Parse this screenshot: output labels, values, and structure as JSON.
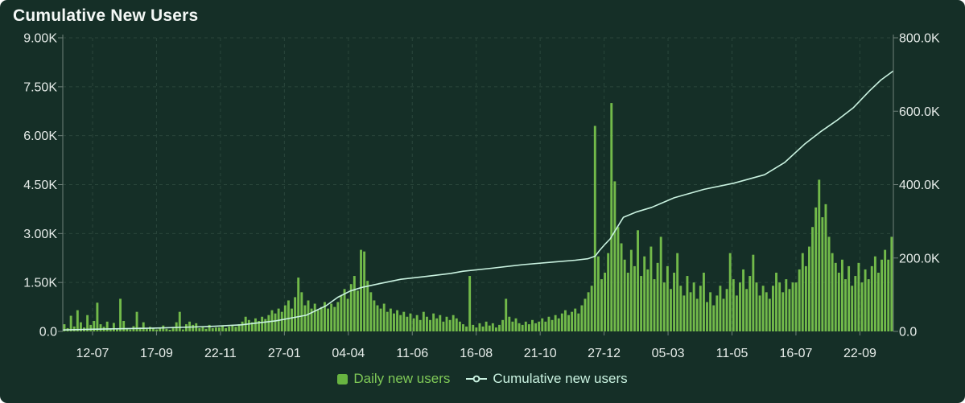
{
  "card": {
    "title": "Cumulative New Users"
  },
  "legend": [
    {
      "label": "Daily new users",
      "color": "#68b441",
      "text_color": "#7fc957"
    },
    {
      "label": "Cumulative new users",
      "color": "#c9f2e0",
      "text_color": "#c9f2e0"
    }
  ],
  "colors": {
    "background": "#152f27",
    "bar": "#72ba4a",
    "line": "#c9f2e0",
    "axis_line": "#6f807a",
    "grid_line": "#2a463b",
    "tick_label": "#e6ece9",
    "title": "#f4f8f6"
  },
  "chart_data": {
    "type": "combo",
    "title": "Cumulative New Users",
    "grid": "dashed",
    "legend_position": "bottom",
    "x_axis": {
      "tick_labels": [
        "12-07",
        "17-09",
        "22-11",
        "27-01",
        "04-04",
        "11-06",
        "16-08",
        "21-10",
        "27-12",
        "05-03",
        "11-05",
        "16-07",
        "22-09"
      ]
    },
    "left_axis": {
      "range": [
        0,
        9
      ],
      "tick_values": [
        0,
        1.5,
        3,
        4.5,
        6,
        7.5,
        9
      ],
      "tick_labels": [
        "0.0",
        "1.50K",
        "3.00K",
        "4.50K",
        "6.00K",
        "7.50K",
        "9.00K"
      ],
      "applies_to": "Daily new users (thousands)"
    },
    "right_axis": {
      "range": [
        0,
        800
      ],
      "tick_values": [
        0,
        200,
        400,
        600,
        800
      ],
      "tick_labels": [
        "0.0",
        "200.0K",
        "400.0K",
        "600.0K",
        "800.0K"
      ],
      "applies_to": "Cumulative new users (thousands)"
    },
    "series": [
      {
        "name": "Daily new users",
        "type": "bar",
        "y_axis": "left",
        "unit": "K",
        "values": [
          0.22,
          0.1,
          0.48,
          0.15,
          0.65,
          0.28,
          0.12,
          0.5,
          0.2,
          0.32,
          0.88,
          0.22,
          0.14,
          0.3,
          0.1,
          0.26,
          0.08,
          1.0,
          0.32,
          0.1,
          0.06,
          0.16,
          0.6,
          0.12,
          0.28,
          0.08,
          0.14,
          0.1,
          0.06,
          0.12,
          0.18,
          0.08,
          0.05,
          0.14,
          0.28,
          0.6,
          0.06,
          0.22,
          0.3,
          0.2,
          0.25,
          0.1,
          0.14,
          0.08,
          0.2,
          0.1,
          0.12,
          0.12,
          0.18,
          0.1,
          0.15,
          0.2,
          0.14,
          0.22,
          0.3,
          0.45,
          0.35,
          0.28,
          0.4,
          0.32,
          0.45,
          0.38,
          0.5,
          0.65,
          0.55,
          0.7,
          0.6,
          0.8,
          0.95,
          0.7,
          1.05,
          1.65,
          1.2,
          0.8,
          0.95,
          0.7,
          0.85,
          0.65,
          0.75,
          0.9,
          0.7,
          0.85,
          0.75,
          0.9,
          1.1,
          1.3,
          1.0,
          1.45,
          1.7,
          1.25,
          2.5,
          2.45,
          1.55,
          1.2,
          0.95,
          0.8,
          0.7,
          0.85,
          0.6,
          0.7,
          0.55,
          0.65,
          0.5,
          0.6,
          0.45,
          0.55,
          0.4,
          0.5,
          0.35,
          0.6,
          0.45,
          0.35,
          0.55,
          0.4,
          0.5,
          0.3,
          0.45,
          0.35,
          0.5,
          0.4,
          0.3,
          0.22,
          0.15,
          1.7,
          0.2,
          0.12,
          0.25,
          0.15,
          0.3,
          0.18,
          0.25,
          0.12,
          0.2,
          0.35,
          1.0,
          0.45,
          0.3,
          0.4,
          0.25,
          0.2,
          0.3,
          0.22,
          0.35,
          0.25,
          0.3,
          0.4,
          0.3,
          0.45,
          0.35,
          0.5,
          0.4,
          0.55,
          0.65,
          0.5,
          0.6,
          0.7,
          0.55,
          0.8,
          1.0,
          1.2,
          1.4,
          6.3,
          2.3,
          1.6,
          1.8,
          2.4,
          7.0,
          4.6,
          3.2,
          2.7,
          2.2,
          1.8,
          2.5,
          2.0,
          3.1,
          1.7,
          2.3,
          1.9,
          2.6,
          1.6,
          2.1,
          2.9,
          1.5,
          2.0,
          1.3,
          1.8,
          2.4,
          1.4,
          1.1,
          1.7,
          1.2,
          1.5,
          1.0,
          1.4,
          1.8,
          0.9,
          1.2,
          0.8,
          1.1,
          1.4,
          1.0,
          1.3,
          2.4,
          1.6,
          1.1,
          1.5,
          1.9,
          1.3,
          1.7,
          2.35,
          1.5,
          1.1,
          1.4,
          1.2,
          1.0,
          1.4,
          1.8,
          1.5,
          1.2,
          1.6,
          1.3,
          1.5,
          1.5,
          1.9,
          2.4,
          2.0,
          2.6,
          3.2,
          3.8,
          4.65,
          3.5,
          3.9,
          2.9,
          2.4,
          2.1,
          1.8,
          2.2,
          1.6,
          2.0,
          1.4,
          1.7,
          2.1,
          1.5,
          1.9,
          1.6,
          2.0,
          2.3,
          1.8,
          2.2,
          2.5,
          2.2,
          2.9
        ]
      },
      {
        "name": "Cumulative new users",
        "type": "line",
        "y_axis": "right",
        "unit": "K",
        "points_xfrac_value": [
          [
            0,
            4
          ],
          [
            0.035,
            6
          ],
          [
            0.109,
            9
          ],
          [
            0.157,
            12
          ],
          [
            0.183,
            14
          ],
          [
            0.215,
            18
          ],
          [
            0.257,
            29
          ],
          [
            0.293,
            44
          ],
          [
            0.317,
            70
          ],
          [
            0.331,
            93
          ],
          [
            0.346,
            110
          ],
          [
            0.36,
            120
          ],
          [
            0.385,
            132
          ],
          [
            0.407,
            142
          ],
          [
            0.438,
            150
          ],
          [
            0.467,
            158
          ],
          [
            0.482,
            164
          ],
          [
            0.516,
            172
          ],
          [
            0.554,
            182
          ],
          [
            0.59,
            189
          ],
          [
            0.617,
            194
          ],
          [
            0.632,
            198
          ],
          [
            0.641,
            205
          ],
          [
            0.646,
            220
          ],
          [
            0.653,
            238
          ],
          [
            0.659,
            252
          ],
          [
            0.666,
            278
          ],
          [
            0.675,
            311
          ],
          [
            0.69,
            325
          ],
          [
            0.709,
            338
          ],
          [
            0.736,
            364
          ],
          [
            0.772,
            387
          ],
          [
            0.808,
            404
          ],
          [
            0.845,
            427
          ],
          [
            0.869,
            460
          ],
          [
            0.893,
            510
          ],
          [
            0.913,
            545
          ],
          [
            0.932,
            575
          ],
          [
            0.952,
            610
          ],
          [
            0.971,
            655
          ],
          [
            0.985,
            685
          ],
          [
            1,
            710
          ]
        ]
      }
    ]
  }
}
